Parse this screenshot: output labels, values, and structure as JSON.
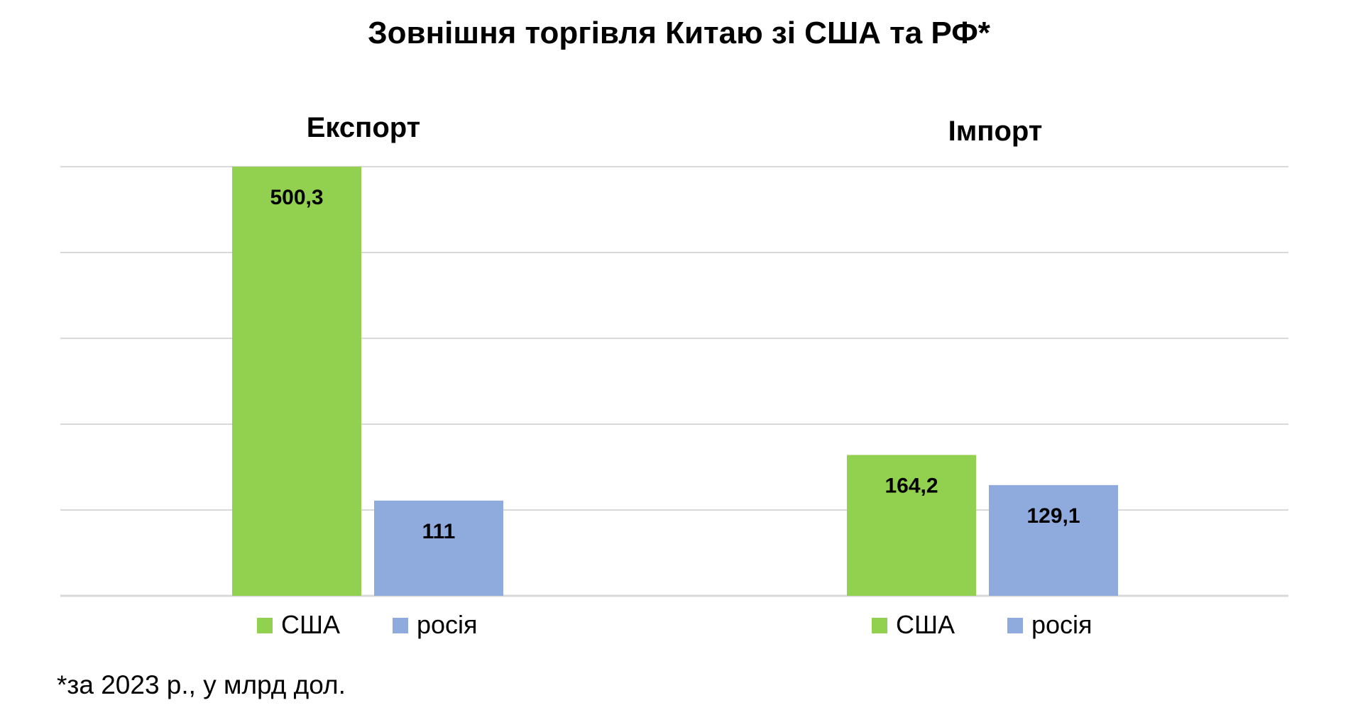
{
  "chart_data": {
    "type": "bar",
    "title": "Зовнішня торгівля Китаю зі США та РФ*",
    "footnote": "*за 2023 р., у млрд дол.",
    "ylim": [
      0,
      500.3
    ],
    "grid": true,
    "panels": [
      {
        "title": "Експорт",
        "categories": [
          "США",
          "росія"
        ],
        "values": [
          500.3,
          111
        ],
        "labels": [
          "500,3",
          "111"
        ]
      },
      {
        "title": "Імпорт",
        "categories": [
          "США",
          "росія"
        ],
        "values": [
          164.2,
          129.1
        ],
        "labels": [
          "164,2",
          "129,1"
        ]
      }
    ],
    "colors": {
      "США": "#92d050",
      "росія": "#8faadc",
      "grid": "#d9d9d9"
    }
  }
}
